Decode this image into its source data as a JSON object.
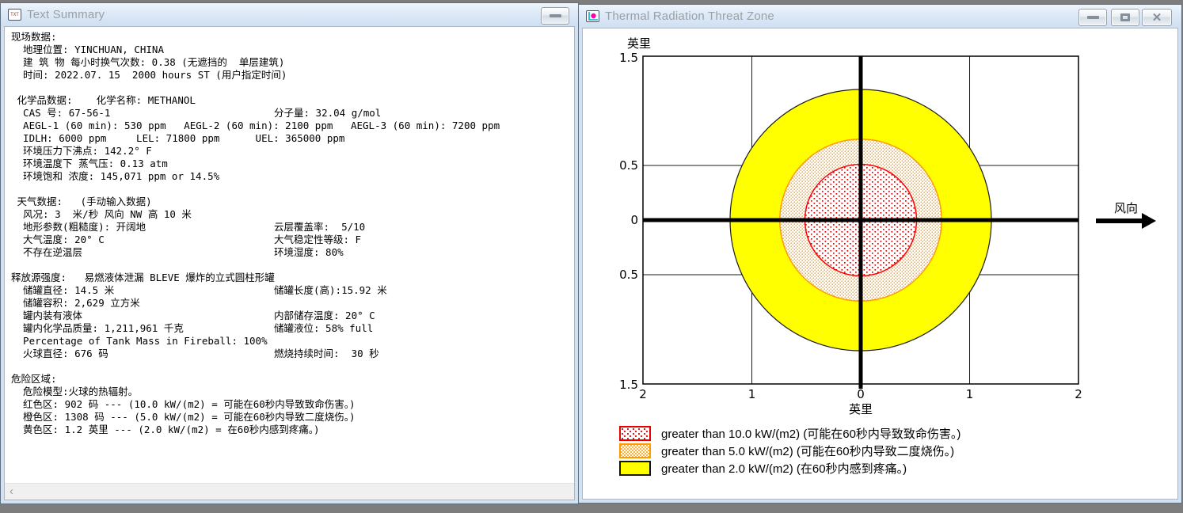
{
  "icons": {
    "scroll_left": "‹",
    "close": "✕"
  },
  "left_window": {
    "title": "Text Summary",
    "icon_text": "TXT",
    "lines": [
      {
        "l": "现场数据:",
        "r": ""
      },
      {
        "l": "  地理位置: YINCHUAN, CHINA",
        "r": ""
      },
      {
        "l": "  建 筑 物 每小时换气次数: 0.38 (无遮挡的  单层建筑)",
        "r": ""
      },
      {
        "l": "  时间: 2022.07. 15  2000 hours ST (用户指定时间)",
        "r": ""
      },
      {
        "l": "",
        "r": ""
      },
      {
        "l": " 化学品数据:    化学名称: METHANOL",
        "r": ""
      },
      {
        "l": "  CAS 号: 67-56-1",
        "r": "分子量: 32.04 g/mol"
      },
      {
        "l": "  AEGL-1 (60 min): 530 ppm   AEGL-2 (60 min): 2100 ppm   AEGL-3 (60 min): 7200 ppm",
        "r": ""
      },
      {
        "l": "  IDLH: 6000 ppm     LEL: 71800 ppm      UEL: 365000 ppm",
        "r": ""
      },
      {
        "l": "  环境压力下沸点: 142.2° F",
        "r": ""
      },
      {
        "l": "  环境温度下 蒸气压: 0.13 atm",
        "r": ""
      },
      {
        "l": "  环境饱和 浓度: 145,071 ppm or 14.5%",
        "r": ""
      },
      {
        "l": "",
        "r": ""
      },
      {
        "l": " 天气数据:   (手动输入数据)",
        "r": ""
      },
      {
        "l": "  风况: 3  米/秒 风向 NW 高 10 米",
        "r": ""
      },
      {
        "l": "  地形参数(粗糙度): 开阔地",
        "r": "云层覆盖率:  5/10"
      },
      {
        "l": "  大气温度: 20° C",
        "r": "大气稳定性等级: F"
      },
      {
        "l": "  不存在逆温层",
        "r": "环境湿度: 80%"
      },
      {
        "l": "",
        "r": ""
      },
      {
        "l": "释放源强度:   易燃液体泄漏 BLEVE 爆炸的立式圆柱形罐",
        "r": ""
      },
      {
        "l": "  储罐直径: 14.5 米",
        "r": "储罐长度(高):15.92 米"
      },
      {
        "l": "  储罐容积: 2,629 立方米",
        "r": ""
      },
      {
        "l": "  罐内装有液体",
        "r": "内部储存温度: 20° C"
      },
      {
        "l": "  罐内化学品质量: 1,211,961 千克",
        "r": "储罐液位: 58% full"
      },
      {
        "l": "  Percentage of Tank Mass in Fireball: 100%",
        "r": ""
      },
      {
        "l": "  火球直径: 676 码",
        "r": "燃烧持续时间:  30 秒"
      },
      {
        "l": "",
        "r": ""
      },
      {
        "l": "危险区域:",
        "r": ""
      },
      {
        "l": "  危险模型:火球的热辐射。",
        "r": ""
      },
      {
        "l": "  红色区: 902 码 --- (10.0 kW/(m2) = 可能在60秒内导致致命伤害。)",
        "r": ""
      },
      {
        "l": "  橙色区: 1308 码 --- (5.0 kW/(m2) = 可能在60秒内导致二度烧伤。)",
        "r": ""
      },
      {
        "l": "  黄色区: 1.2 英里 --- (2.0 kW/(m2) = 在60秒内感到疼痛。)",
        "r": ""
      }
    ]
  },
  "right_window": {
    "title": "Thermal Radiation Threat Zone",
    "window_buttons": [
      "minimize",
      "maximize",
      "close"
    ]
  },
  "chart_data": {
    "type": "threat-zone-plot",
    "title": "Thermal Radiation Threat Zone",
    "xlabel": "英里",
    "ylabel": "英里",
    "xlim": [
      -2,
      2
    ],
    "ylim": [
      -1.5,
      1.5
    ],
    "x_tick_labels": [
      "2",
      "1",
      "0",
      "1",
      "2"
    ],
    "y_tick_labels": [
      "1.5",
      "0.5",
      "0",
      "0.5",
      "1.5"
    ],
    "x_gridlines": [
      -1,
      1
    ],
    "y_gridlines": [
      -0.5,
      0.5
    ],
    "grid": true,
    "center": [
      0,
      0
    ],
    "wind_direction_label": "风向",
    "zones": [
      {
        "name": "red",
        "threshold": "greater than 10.0 kW/(m2)",
        "legend": "greater than 10.0 kW/(m2) (可能在60秒内导致致命伤害。)",
        "radius_text": "902 码",
        "radius_miles": 0.513,
        "color": "#ff0000",
        "fill": "red-dot-pattern"
      },
      {
        "name": "orange",
        "threshold": "greater than 5.0 kW/(m2)",
        "legend": "greater than 5.0 kW/(m2) (可能在60秒内导致二度烧伤。)",
        "radius_text": "1308 码",
        "radius_miles": 0.743,
        "color": "#ff9d00",
        "fill": "orange-dot-pattern"
      },
      {
        "name": "yellow",
        "threshold": "greater than 2.0 kW/(m2)",
        "legend": "greater than 2.0 kW/(m2) (在60秒内感到疼痛。)",
        "radius_text": "1.2 英里",
        "radius_miles": 1.2,
        "color": "#ffff00",
        "fill": "solid-yellow"
      }
    ]
  }
}
